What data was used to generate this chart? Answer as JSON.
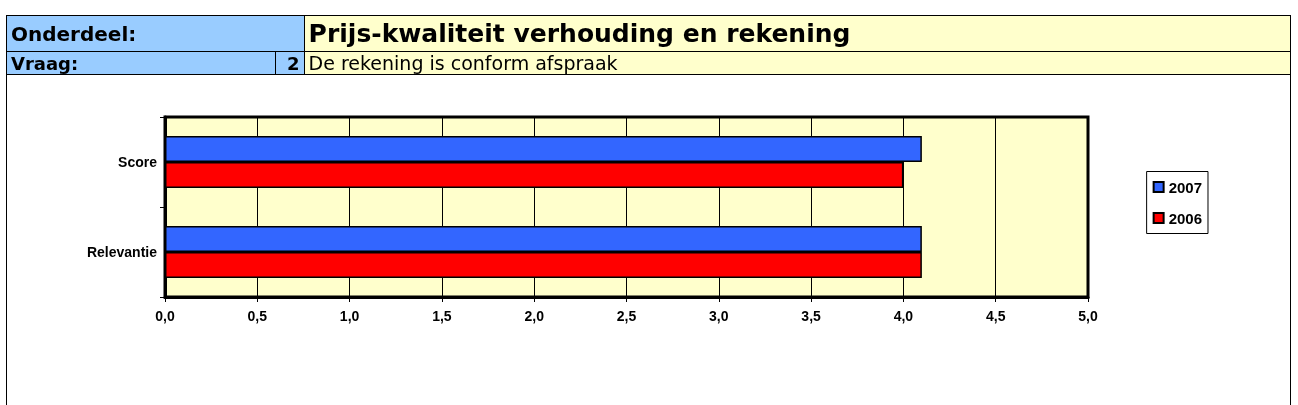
{
  "chart_data": {
    "type": "bar",
    "orientation": "horizontal",
    "title": "Prijs-kwaliteit verhouding en rekening",
    "subtitle": "De rekening is conform afspraak",
    "annotations": [
      "Onderdeel:",
      "Vraag:",
      "2"
    ],
    "categories": [
      "Score",
      "Relevantie"
    ],
    "series": [
      {
        "name": "2007",
        "color": "#3366ff",
        "values": [
          4.1,
          4.1
        ]
      },
      {
        "name": "2006",
        "color": "#ff0000",
        "values": [
          4.0,
          4.1
        ]
      }
    ],
    "xlim": [
      0,
      5
    ],
    "xticks": [
      {
        "value": 0,
        "label": "0,0"
      },
      {
        "value": 0.5,
        "label": "0,5"
      },
      {
        "value": 1,
        "label": "1,0"
      },
      {
        "value": 1.5,
        "label": "1,5"
      },
      {
        "value": 2,
        "label": "2,0"
      },
      {
        "value": 2.5,
        "label": "2,5"
      },
      {
        "value": 3,
        "label": "3,0"
      },
      {
        "value": 3.5,
        "label": "3,5"
      },
      {
        "value": 4,
        "label": "4,0"
      },
      {
        "value": 4.5,
        "label": "4,5"
      },
      {
        "value": 5,
        "label": "5,0"
      }
    ],
    "grid": "x",
    "legend": "right"
  }
}
